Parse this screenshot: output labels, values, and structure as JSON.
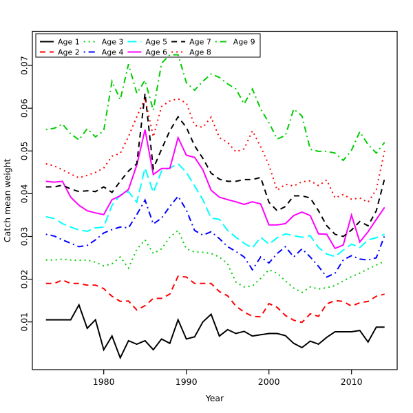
{
  "chart_data": {
    "type": "line",
    "title": "",
    "xlabel": "Year",
    "ylabel": "Catch mean weight",
    "x_ticks": [
      1980,
      1990,
      2000,
      2010
    ],
    "y_ticks": [
      0.01,
      0.02,
      0.03,
      0.04,
      0.05,
      0.06,
      0.07
    ],
    "xlim": [
      1971.3,
      2015.6
    ],
    "ylim": [
      0,
      0.078
    ],
    "grid": false,
    "legend_position": "top-left",
    "legend_rows": 2,
    "legend_columns": 5,
    "colors": {
      "black": "#000000",
      "red": "#FF0000",
      "green": "#00CD00",
      "blue": "#0000FF",
      "cyan": "#00FFFF",
      "magenta": "#FF00FF"
    },
    "x": [
      1973,
      1974,
      1975,
      1976,
      1977,
      1978,
      1979,
      1980,
      1981,
      1982,
      1983,
      1984,
      1985,
      1986,
      1987,
      1988,
      1989,
      1990,
      1991,
      1992,
      1993,
      1994,
      1995,
      1996,
      1997,
      1998,
      1999,
      2000,
      2001,
      2002,
      2003,
      2004,
      2005,
      2006,
      2007,
      2008,
      2009,
      2010,
      2011,
      2012,
      2013,
      2014
    ],
    "series": [
      {
        "name": "Age 1",
        "color": "#000000",
        "line_style": "solid",
        "values": [
          0.0105,
          0.0105,
          0.0105,
          0.0105,
          0.014,
          0.0085,
          0.0105,
          0.0035,
          0.0067,
          0.0016,
          0.0056,
          0.0048,
          0.0056,
          0.0035,
          0.006,
          0.005,
          0.0105,
          0.006,
          0.0065,
          0.01,
          0.0118,
          0.0067,
          0.0082,
          0.0073,
          0.0078,
          0.0067,
          0.007,
          0.0073,
          0.0073,
          0.0068,
          0.005,
          0.004,
          0.0055,
          0.0048,
          0.0064,
          0.0077,
          0.0077,
          0.0077,
          0.008,
          0.0053,
          0.0088,
          0.0088
        ]
      },
      {
        "name": "Age 2",
        "color": "#FF0000",
        "line_style": "dashed",
        "values": [
          0.019,
          0.019,
          0.0198,
          0.019,
          0.019,
          0.0186,
          0.0186,
          0.0178,
          0.016,
          0.0148,
          0.0149,
          0.0128,
          0.0138,
          0.0155,
          0.0155,
          0.0165,
          0.0207,
          0.0205,
          0.019,
          0.019,
          0.019,
          0.0171,
          0.0161,
          0.0137,
          0.0123,
          0.0113,
          0.0112,
          0.0143,
          0.0134,
          0.0115,
          0.0104,
          0.0099,
          0.0119,
          0.0113,
          0.0142,
          0.015,
          0.0148,
          0.0137,
          0.0145,
          0.0148,
          0.016,
          0.0165
        ]
      },
      {
        "name": "Age 3",
        "color": "#00CD00",
        "line_style": "dotted",
        "values": [
          0.0245,
          0.0245,
          0.0247,
          0.0245,
          0.0244,
          0.0245,
          0.024,
          0.0231,
          0.0236,
          0.0252,
          0.0226,
          0.027,
          0.0292,
          0.026,
          0.0271,
          0.0298,
          0.0314,
          0.0271,
          0.0264,
          0.0263,
          0.026,
          0.0252,
          0.0236,
          0.0193,
          0.0182,
          0.0184,
          0.0202,
          0.0222,
          0.0214,
          0.0196,
          0.0179,
          0.0169,
          0.0182,
          0.0177,
          0.018,
          0.0185,
          0.0196,
          0.0206,
          0.0214,
          0.0224,
          0.0233,
          0.0242
        ]
      },
      {
        "name": "Age 4",
        "color": "#0000FF",
        "line_style": "dotdash",
        "values": [
          0.0305,
          0.0301,
          0.0292,
          0.0284,
          0.0276,
          0.0279,
          0.0292,
          0.0308,
          0.0316,
          0.0322,
          0.032,
          0.0351,
          0.0385,
          0.0329,
          0.0343,
          0.037,
          0.0394,
          0.0362,
          0.0314,
          0.0303,
          0.0311,
          0.0295,
          0.0276,
          0.0265,
          0.0252,
          0.0222,
          0.0252,
          0.0238,
          0.026,
          0.0276,
          0.0252,
          0.0271,
          0.0252,
          0.023,
          0.0205,
          0.0214,
          0.0245,
          0.0255,
          0.0247,
          0.0245,
          0.025,
          0.0302
        ]
      },
      {
        "name": "Age 5",
        "color": "#00FFFF",
        "line_style": "longdash",
        "values": [
          0.0346,
          0.0342,
          0.033,
          0.0322,
          0.0315,
          0.0312,
          0.032,
          0.0322,
          0.0373,
          0.0397,
          0.0405,
          0.038,
          0.046,
          0.0403,
          0.0453,
          0.046,
          0.047,
          0.045,
          0.0418,
          0.0386,
          0.0343,
          0.034,
          0.0314,
          0.0298,
          0.0284,
          0.0273,
          0.0298,
          0.0282,
          0.0297,
          0.0306,
          0.0302,
          0.0298,
          0.0302,
          0.0274,
          0.0259,
          0.0253,
          0.0268,
          0.0282,
          0.0274,
          0.0292,
          0.0297,
          0.0305
        ]
      },
      {
        "name": "Age 6",
        "color": "#FF00FF",
        "line_style": "solid",
        "values": [
          0.0429,
          0.0427,
          0.0429,
          0.0392,
          0.0373,
          0.036,
          0.0355,
          0.0351,
          0.0386,
          0.0395,
          0.041,
          0.0467,
          0.055,
          0.0445,
          0.0459,
          0.0459,
          0.0531,
          0.049,
          0.0485,
          0.0456,
          0.0408,
          0.0392,
          0.0386,
          0.0381,
          0.0375,
          0.0381,
          0.0376,
          0.0327,
          0.0327,
          0.033,
          0.0349,
          0.0357,
          0.0349,
          0.0306,
          0.0305,
          0.0272,
          0.028,
          0.035,
          0.0287,
          0.0311,
          0.034,
          0.0368
        ]
      },
      {
        "name": "Age 7",
        "color": "#000000",
        "line_style": "dashed",
        "values": [
          0.0416,
          0.0416,
          0.042,
          0.0411,
          0.0405,
          0.0407,
          0.0405,
          0.0416,
          0.0403,
          0.0429,
          0.0453,
          0.047,
          0.0635,
          0.0459,
          0.0504,
          0.0547,
          0.058,
          0.0555,
          0.0512,
          0.0483,
          0.0448,
          0.0434,
          0.0429,
          0.0429,
          0.0433,
          0.0433,
          0.0438,
          0.038,
          0.036,
          0.037,
          0.0395,
          0.0395,
          0.039,
          0.036,
          0.0325,
          0.0305,
          0.03,
          0.0315,
          0.0335,
          0.0325,
          0.036,
          0.0435
        ]
      },
      {
        "name": "Age 8",
        "color": "#FF0000",
        "line_style": "dotted",
        "values": [
          0.047,
          0.0465,
          0.0456,
          0.0446,
          0.0437,
          0.0443,
          0.045,
          0.046,
          0.0488,
          0.0494,
          0.0534,
          0.058,
          0.0623,
          0.0533,
          0.0604,
          0.0617,
          0.0622,
          0.0612,
          0.056,
          0.0555,
          0.0579,
          0.0531,
          0.052,
          0.0498,
          0.0505,
          0.0547,
          0.051,
          0.0467,
          0.0408,
          0.0422,
          0.0418,
          0.0428,
          0.043,
          0.0419,
          0.0432,
          0.039,
          0.0398,
          0.0387,
          0.039,
          0.038,
          0.041,
          0.05
        ]
      },
      {
        "name": "Age 9",
        "color": "#00CD00",
        "line_style": "dotdash",
        "values": [
          0.055,
          0.0553,
          0.0563,
          0.054,
          0.0526,
          0.0552,
          0.0533,
          0.0547,
          0.0663,
          0.062,
          0.0703,
          0.0635,
          0.0665,
          0.0595,
          0.0705,
          0.0725,
          0.0725,
          0.066,
          0.0642,
          0.0663,
          0.068,
          0.0672,
          0.0657,
          0.0645,
          0.061,
          0.0645,
          0.0598,
          0.0566,
          0.0528,
          0.0536,
          0.0598,
          0.0582,
          0.0504,
          0.0499,
          0.0499,
          0.0495,
          0.0478,
          0.0502,
          0.0545,
          0.0515,
          0.0495,
          0.052
        ]
      }
    ]
  }
}
